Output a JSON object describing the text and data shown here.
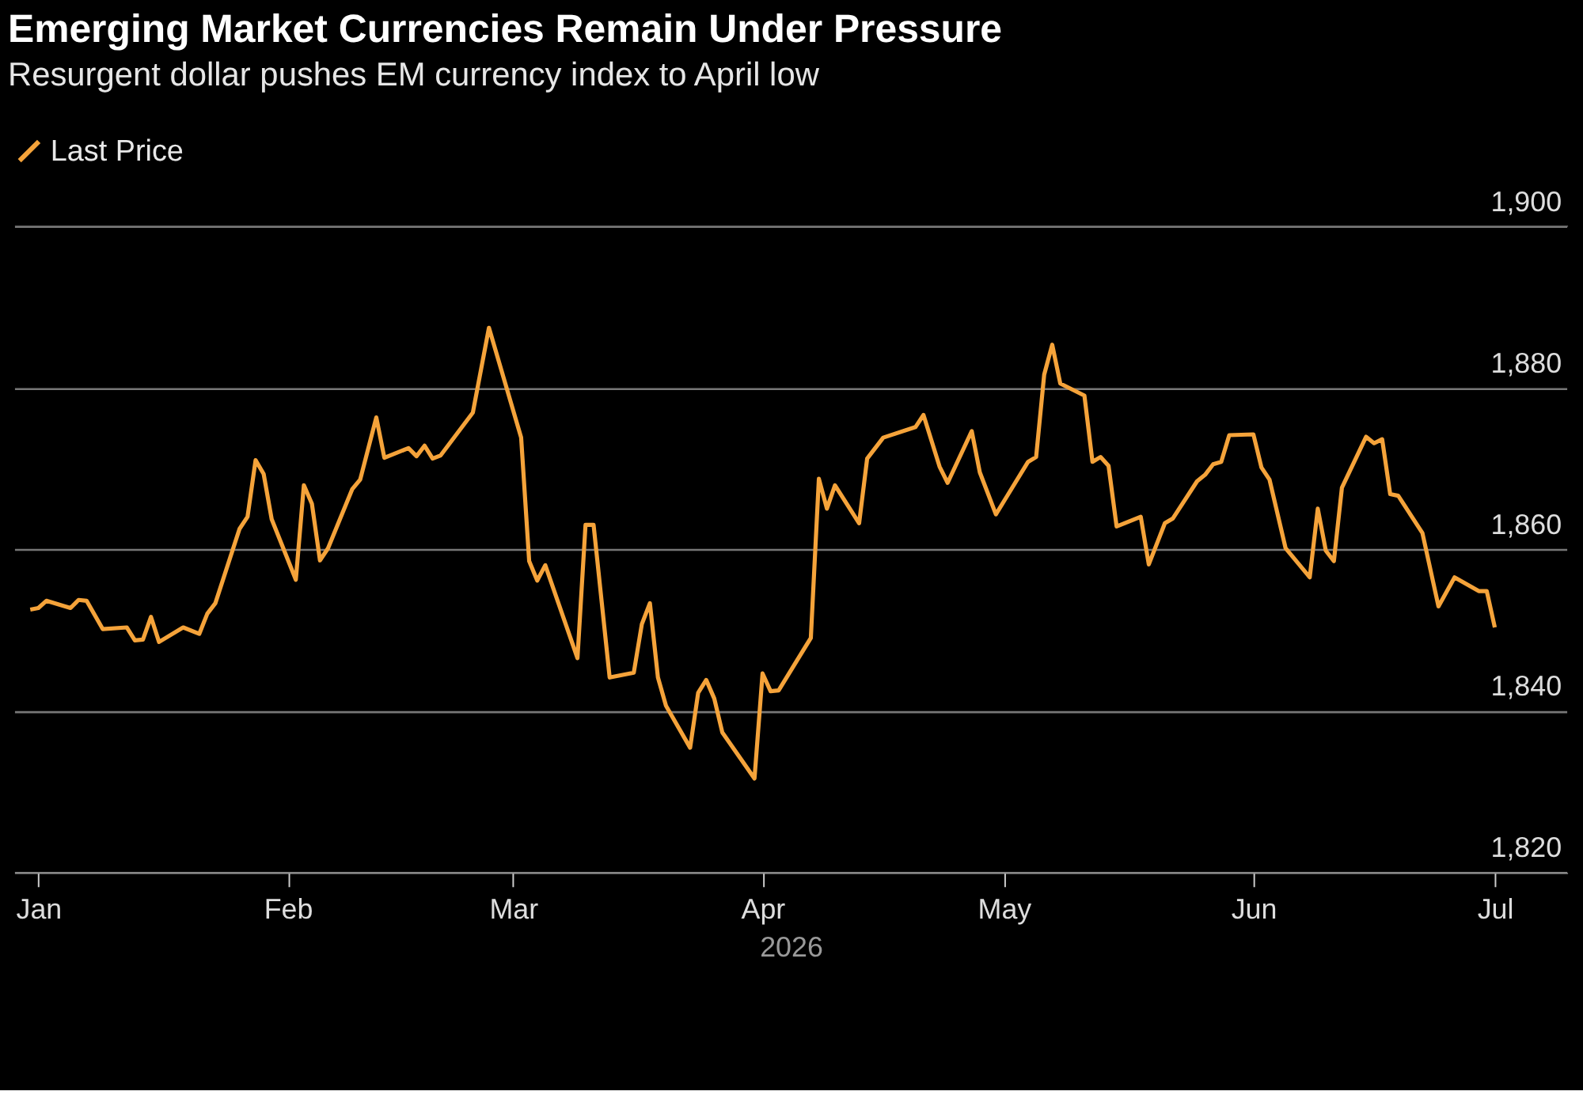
{
  "chart_data": {
    "type": "line",
    "title": "Emerging Market Currencies Remain Under Pressure",
    "subtitle": "Resurgent dollar pushes EM currency index to April low",
    "xlabel": "2026",
    "x": [
      "2025-12-31",
      "2026-01-01",
      "2026-01-02",
      "2026-01-05",
      "2026-01-06",
      "2026-01-07",
      "2026-01-09",
      "2026-01-12",
      "2026-01-13",
      "2026-01-14",
      "2026-01-15",
      "2026-01-16",
      "2026-01-19",
      "2026-01-21",
      "2026-01-22",
      "2026-01-23",
      "2026-01-26",
      "2026-01-27",
      "2026-01-28",
      "2026-01-29",
      "2026-01-30",
      "2026-02-02",
      "2026-02-03",
      "2026-02-04",
      "2026-02-05",
      "2026-02-06",
      "2026-02-09",
      "2026-02-10",
      "2026-02-12",
      "2026-02-13",
      "2026-02-16",
      "2026-02-17",
      "2026-02-18",
      "2026-02-19",
      "2026-02-20",
      "2026-02-24",
      "2026-02-26",
      "2026-03-02",
      "2026-03-03",
      "2026-03-04",
      "2026-03-05",
      "2026-03-09",
      "2026-03-10",
      "2026-03-11",
      "2026-03-13",
      "2026-03-16",
      "2026-03-17",
      "2026-03-18",
      "2026-03-19",
      "2026-03-20",
      "2026-03-23",
      "2026-03-24",
      "2026-03-25",
      "2026-03-26",
      "2026-03-27",
      "2026-03-31",
      "2026-04-01",
      "2026-04-02",
      "2026-04-03",
      "2026-04-07",
      "2026-04-08",
      "2026-04-09",
      "2026-04-10",
      "2026-04-13",
      "2026-04-14",
      "2026-04-16",
      "2026-04-20",
      "2026-04-21",
      "2026-04-23",
      "2026-04-24",
      "2026-04-27",
      "2026-04-28",
      "2026-04-30",
      "2026-05-04",
      "2026-05-05",
      "2026-05-06",
      "2026-05-07",
      "2026-05-08",
      "2026-05-11",
      "2026-05-12",
      "2026-05-13",
      "2026-05-14",
      "2026-05-15",
      "2026-05-18",
      "2026-05-19",
      "2026-05-21",
      "2026-05-22",
      "2026-05-25",
      "2026-05-26",
      "2026-05-27",
      "2026-05-28",
      "2026-05-29",
      "2026-06-01",
      "2026-06-02",
      "2026-06-03",
      "2026-06-05",
      "2026-06-08",
      "2026-06-09",
      "2026-06-10",
      "2026-06-11",
      "2026-06-12",
      "2026-06-15",
      "2026-06-16",
      "2026-06-17",
      "2026-06-18",
      "2026-06-19",
      "2026-06-22",
      "2026-06-24",
      "2026-06-26",
      "2026-06-29",
      "2026-06-30",
      "2026-07-01"
    ],
    "series": [
      {
        "name": "Last Price",
        "color": "#f5a33a",
        "values": [
          1852.5,
          1852.7,
          1853.6,
          1852.7,
          1853.7,
          1853.6,
          1850.1,
          1850.3,
          1848.7,
          1848.8,
          1851.6,
          1848.5,
          1850.3,
          1849.5,
          1852.0,
          1853.3,
          1862.5,
          1864.0,
          1871.0,
          1869.3,
          1863.7,
          1856.2,
          1867.9,
          1865.6,
          1858.6,
          1860.1,
          1867.4,
          1868.6,
          1876.3,
          1871.3,
          1872.5,
          1871.5,
          1872.8,
          1871.2,
          1871.6,
          1876.9,
          1887.4,
          1873.8,
          1858.5,
          1856.1,
          1858.0,
          1846.5,
          1863.0,
          1863.0,
          1844.1,
          1844.7,
          1850.7,
          1853.3,
          1844.1,
          1840.6,
          1835.4,
          1842.2,
          1843.8,
          1841.5,
          1837.3,
          1831.6,
          1844.6,
          1842.4,
          1842.5,
          1849.0,
          1868.7,
          1865.0,
          1867.9,
          1863.2,
          1871.2,
          1873.8,
          1875.1,
          1876.6,
          1870.2,
          1868.2,
          1874.6,
          1869.5,
          1864.3,
          1870.8,
          1871.4,
          1881.6,
          1885.3,
          1880.5,
          1879.0,
          1870.8,
          1871.4,
          1870.3,
          1862.8,
          1864.0,
          1858.1,
          1863.2,
          1863.8,
          1868.4,
          1869.2,
          1870.5,
          1870.8,
          1874.1,
          1874.2,
          1870.1,
          1868.6,
          1860.1,
          1856.5,
          1865.0,
          1859.8,
          1858.5,
          1867.6,
          1873.9,
          1873.1,
          1873.6,
          1866.8,
          1866.6,
          1862.0,
          1852.9,
          1856.5,
          1854.8,
          1854.8,
          1850.3
        ]
      }
    ],
    "xlim": [
      "2025-12-29",
      "2026-07-10"
    ],
    "xticks": [
      {
        "value": "2026-01-01",
        "label": "Jan"
      },
      {
        "value": "2026-02-01",
        "label": "Feb"
      },
      {
        "value": "2026-03-01",
        "label": "Mar"
      },
      {
        "value": "2026-04-01",
        "label": "Apr"
      },
      {
        "value": "2026-05-01",
        "label": "May"
      },
      {
        "value": "2026-06-01",
        "label": "Jun"
      },
      {
        "value": "2026-07-01",
        "label": "Jul"
      }
    ],
    "ylim": [
      1820,
      1900
    ],
    "yticks": [
      {
        "value": 1820,
        "label": "1,820"
      },
      {
        "value": 1840,
        "label": "1,840"
      },
      {
        "value": 1860,
        "label": "1,860"
      },
      {
        "value": 1880,
        "label": "1,880"
      },
      {
        "value": 1900,
        "label": "1,900"
      }
    ],
    "grid": "y",
    "legend": "top left",
    "marker": "none",
    "line_style": "solid"
  }
}
